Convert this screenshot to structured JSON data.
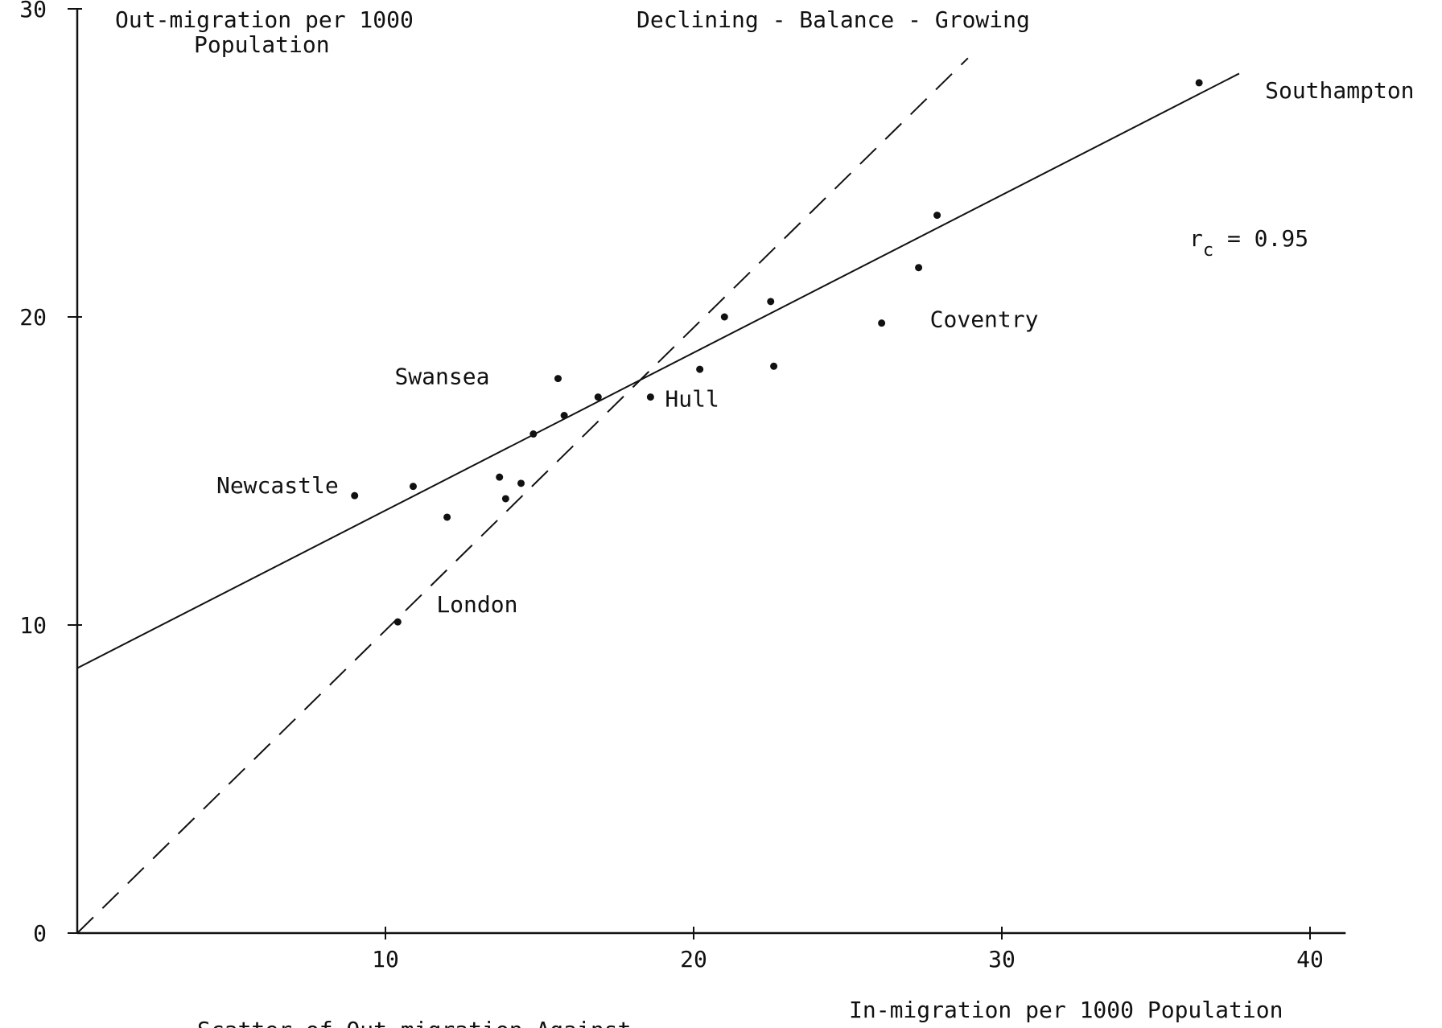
{
  "chart_data": {
    "type": "scatter",
    "title": "Declining - Balance - Growing",
    "ylabel": [
      "Out-migration per 1000",
      "Population"
    ],
    "xlabel": "In-migration per 1000 Population",
    "caption_fragment": "Scatter of Out-migration Against",
    "xlim": [
      0,
      41
    ],
    "ylim": [
      0,
      30
    ],
    "x_ticks": [
      10,
      20,
      30,
      40
    ],
    "y_ticks": [
      0,
      10,
      20,
      30
    ],
    "correlation": {
      "symbol": "r",
      "subscript": "c",
      "text": " = 0.95"
    },
    "regression_line": {
      "x": [
        0,
        37.7
      ],
      "y": [
        8.6,
        27.9
      ]
    },
    "balance_line": {
      "x": [
        0,
        28.9
      ],
      "y": [
        0,
        28.4
      ]
    },
    "points": [
      {
        "x": 10.4,
        "y": 10.1,
        "label": "London"
      },
      {
        "x": 9.0,
        "y": 14.2,
        "label": "Newcastle"
      },
      {
        "x": 10.9,
        "y": 14.5,
        "label": ""
      },
      {
        "x": 12.0,
        "y": 13.5,
        "label": ""
      },
      {
        "x": 13.7,
        "y": 14.8,
        "label": ""
      },
      {
        "x": 13.9,
        "y": 14.1,
        "label": ""
      },
      {
        "x": 14.4,
        "y": 14.6,
        "label": ""
      },
      {
        "x": 14.8,
        "y": 16.2,
        "label": ""
      },
      {
        "x": 15.6,
        "y": 18.0,
        "label": "Swansea"
      },
      {
        "x": 15.8,
        "y": 16.8,
        "label": ""
      },
      {
        "x": 16.9,
        "y": 17.4,
        "label": ""
      },
      {
        "x": 18.6,
        "y": 17.4,
        "label": "Hull"
      },
      {
        "x": 20.2,
        "y": 18.3,
        "label": ""
      },
      {
        "x": 21.0,
        "y": 20.0,
        "label": ""
      },
      {
        "x": 22.5,
        "y": 20.5,
        "label": ""
      },
      {
        "x": 22.6,
        "y": 18.4,
        "label": ""
      },
      {
        "x": 26.1,
        "y": 19.8,
        "label": "Coventry"
      },
      {
        "x": 27.3,
        "y": 21.6,
        "label": ""
      },
      {
        "x": 27.9,
        "y": 23.3,
        "label": ""
      },
      {
        "x": 36.4,
        "y": 27.6,
        "label": "Southampton"
      }
    ]
  }
}
